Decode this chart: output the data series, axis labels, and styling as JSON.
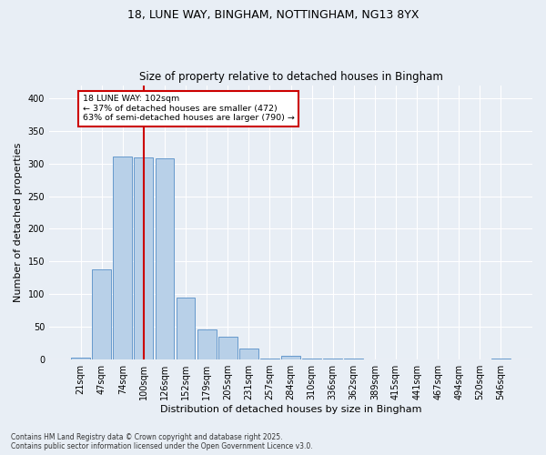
{
  "title1": "18, LUNE WAY, BINGHAM, NOTTINGHAM, NG13 8YX",
  "title2": "Size of property relative to detached houses in Bingham",
  "xlabel": "Distribution of detached houses by size in Bingham",
  "ylabel": "Number of detached properties",
  "bar_labels": [
    "21sqm",
    "47sqm",
    "74sqm",
    "100sqm",
    "126sqm",
    "152sqm",
    "179sqm",
    "205sqm",
    "231sqm",
    "257sqm",
    "284sqm",
    "310sqm",
    "336sqm",
    "362sqm",
    "389sqm",
    "415sqm",
    "441sqm",
    "467sqm",
    "494sqm",
    "520sqm",
    "546sqm"
  ],
  "bar_values": [
    3,
    138,
    311,
    310,
    308,
    95,
    46,
    35,
    17,
    2,
    6,
    2,
    1,
    1,
    0,
    0,
    0,
    0,
    0,
    0,
    2
  ],
  "bar_color": "#b8d0e8",
  "bar_edge_color": "#6699cc",
  "vline_index": 3,
  "vline_color": "#cc0000",
  "annotation_text": "18 LUNE WAY: 102sqm\n← 37% of detached houses are smaller (472)\n63% of semi-detached houses are larger (790) →",
  "annotation_box_color": "#ffffff",
  "annotation_box_edge": "#cc0000",
  "ylim": [
    0,
    420
  ],
  "yticks": [
    0,
    50,
    100,
    150,
    200,
    250,
    300,
    350,
    400
  ],
  "background_color": "#e8eef5",
  "grid_color": "#ffffff",
  "footnote": "Contains HM Land Registry data © Crown copyright and database right 2025.\nContains public sector information licensed under the Open Government Licence v3.0."
}
